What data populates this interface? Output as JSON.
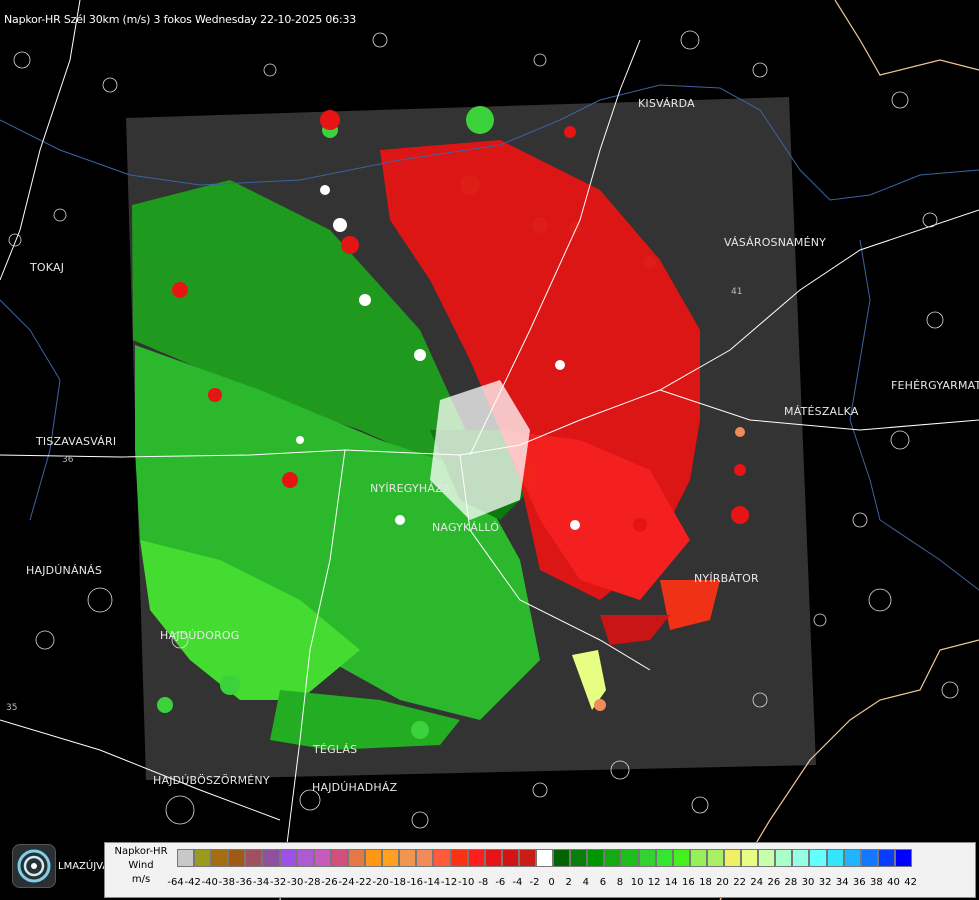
{
  "title": "Napkor-HR Szél 30km (m/s) 3 fokos Wednesday 22-10-2025 06:33",
  "cities": [
    {
      "name": "KISVÁRDA"
    },
    {
      "name": "VÁSÁROSNAMÉNY"
    },
    {
      "name": "TOKAJ"
    },
    {
      "name": "FEHÉRGYARMAT"
    },
    {
      "name": "MÁTÉSZALKA"
    },
    {
      "name": "TISZAVASVÁRI"
    },
    {
      "name": "NYÍREGYHÁZA"
    },
    {
      "name": "NAGYKÁLLÓ"
    },
    {
      "name": "HAJDÚNÁNÁS"
    },
    {
      "name": "NYÍRBÁTOR"
    },
    {
      "name": "HAJDÚDOROG"
    },
    {
      "name": "TÉGLÁS"
    },
    {
      "name": "HAJDÚBÖSZÖRMÉNY"
    },
    {
      "name": "HAJDÚHADHÁZ"
    }
  ],
  "road_numbers": [
    "41",
    "36",
    "35"
  ],
  "logo_text": "LMAZÚJVÁR",
  "legend": {
    "title_line1": "Napkor-HR",
    "title_line2": "Wind",
    "title_line3": "m/s",
    "colors": [
      "#c8c8c8",
      "#9a9a1e",
      "#a46e14",
      "#a05a14",
      "#a05060",
      "#9050a0",
      "#a050e6",
      "#b05ad2",
      "#c85abe",
      "#d2507d",
      "#e67846",
      "#ff9614",
      "#ffa01e",
      "#f09650",
      "#f08c5a",
      "#ff5a3c",
      "#fa3214",
      "#ff1e1e",
      "#e61414",
      "#d21414",
      "#c81e14",
      "#ffffff",
      "#006400",
      "#0a7d0a",
      "#009600",
      "#14aa14",
      "#1ebe1e",
      "#32d232",
      "#32e632",
      "#46f01e",
      "#96f05a",
      "#aaf064",
      "#f0f064",
      "#e6ff82",
      "#c8ffaa",
      "#aaffc8",
      "#96ffe6",
      "#64ffff",
      "#32e6ff",
      "#1eb4ff",
      "#1478ff",
      "#0a3cff",
      "#0000ff"
    ],
    "ticks": [
      "-64",
      "-42",
      "-40",
      "-38",
      "-36",
      "-34",
      "-32",
      "-30",
      "-28",
      "-26",
      "-24",
      "-22",
      "-20",
      "-18",
      "-16",
      "-14",
      "-12",
      "-10",
      "-8",
      "-6",
      "-4",
      "-2",
      "0",
      "2",
      "4",
      "6",
      "8",
      "10",
      "12",
      "14",
      "16",
      "18",
      "20",
      "22",
      "24",
      "26",
      "28",
      "30",
      "32",
      "34",
      "36",
      "38",
      "40",
      "42"
    ]
  }
}
